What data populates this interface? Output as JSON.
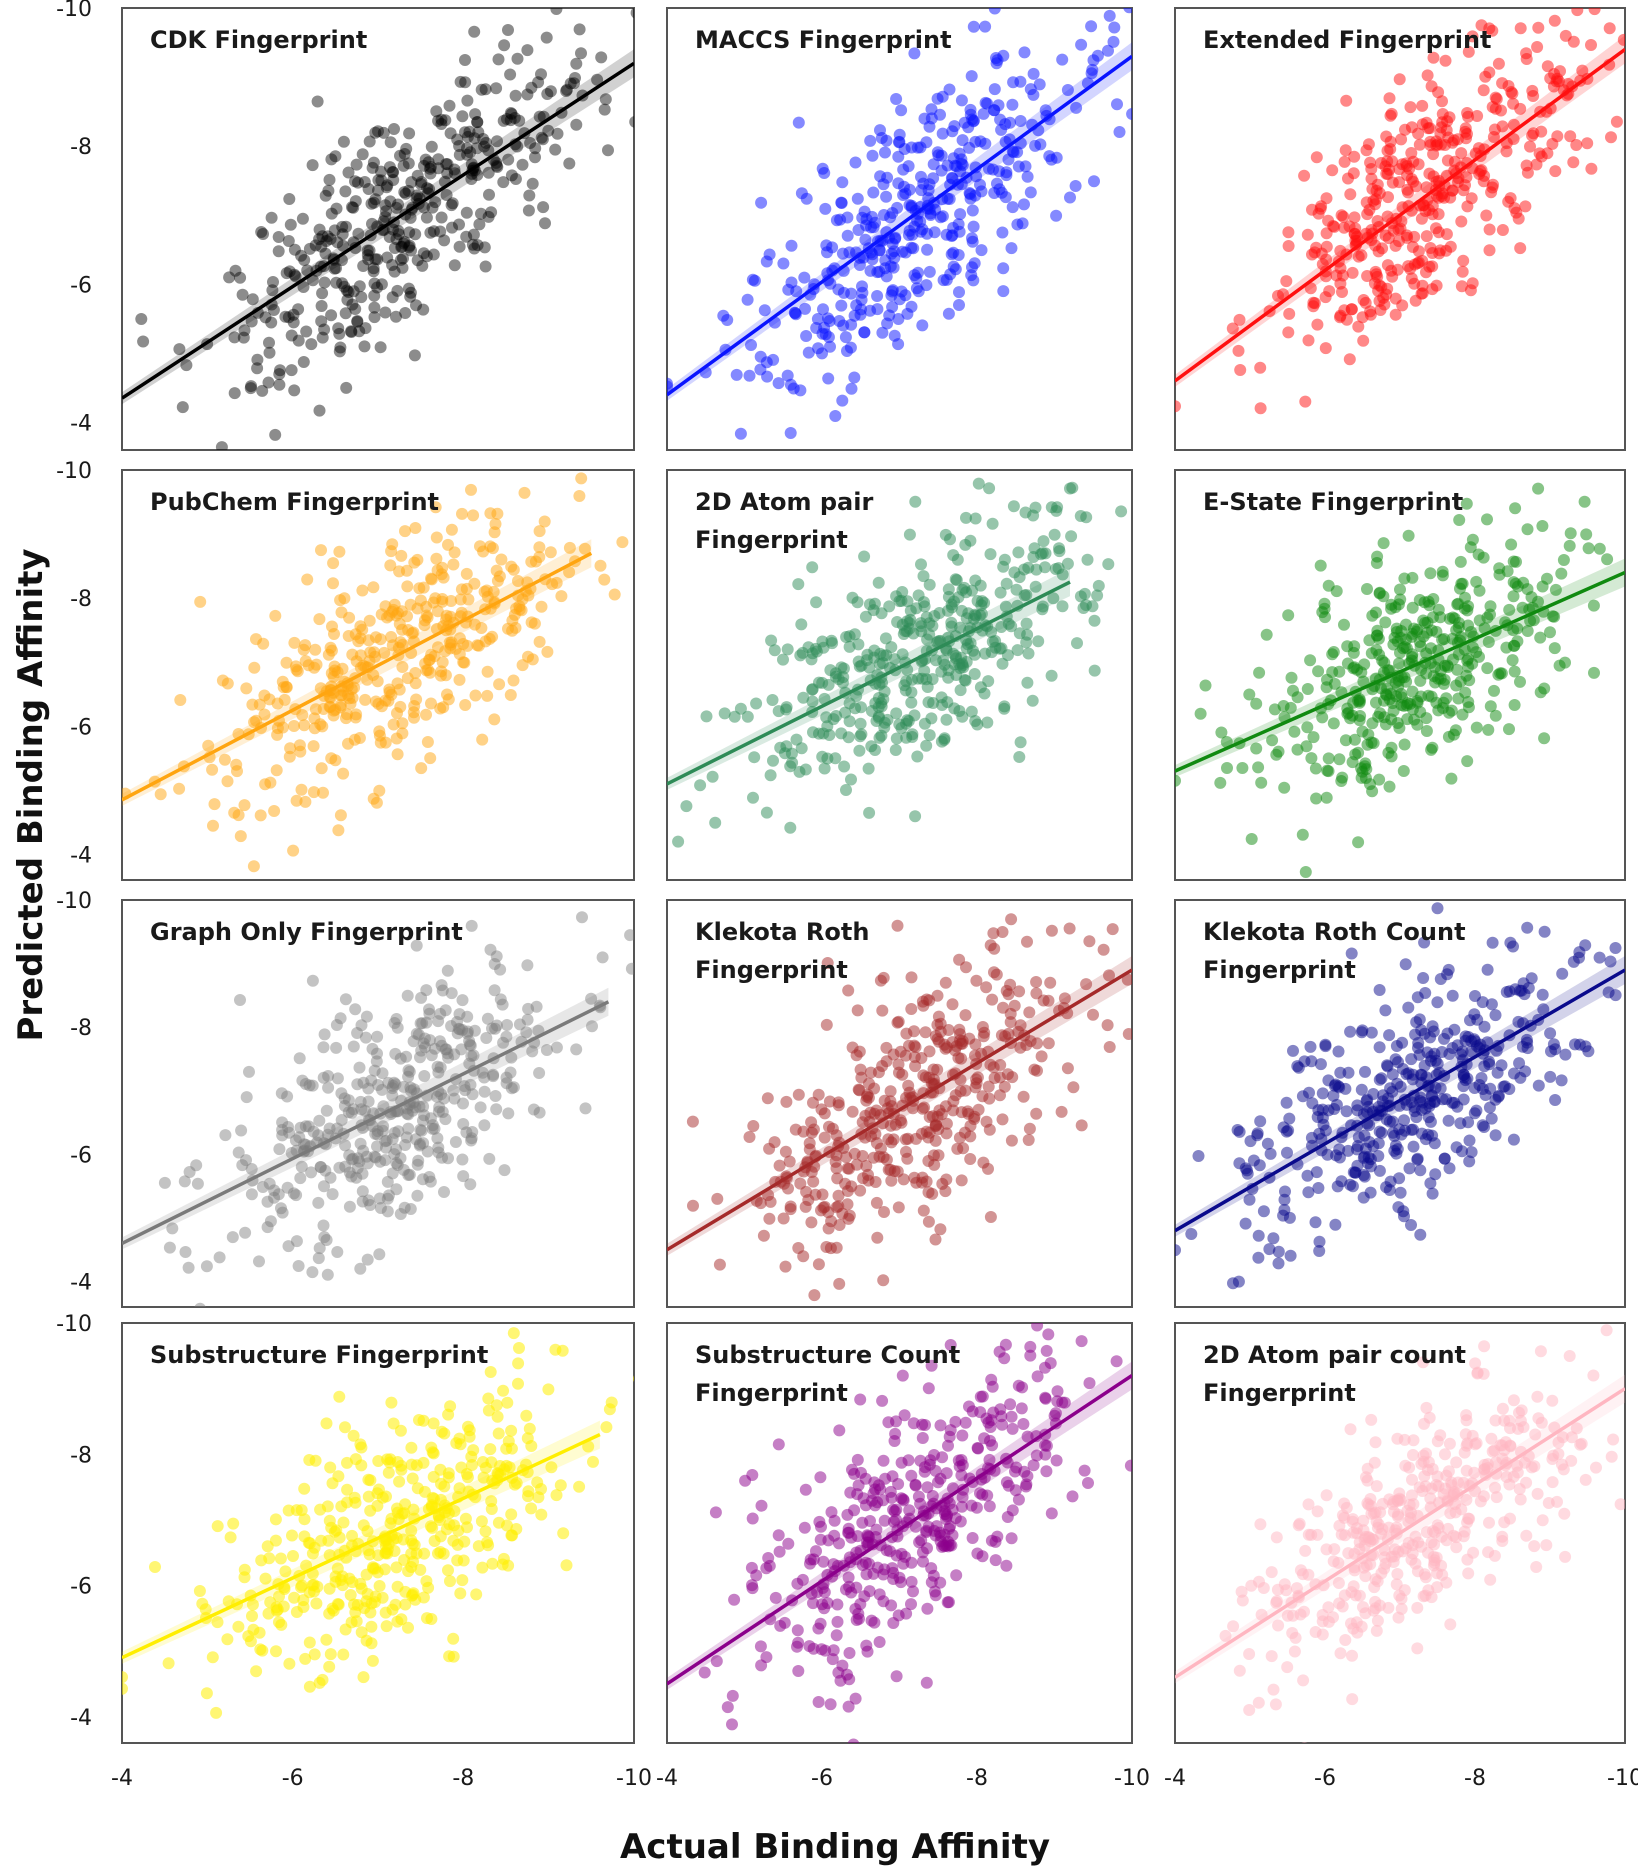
{
  "chart_data": {
    "type": "scatter",
    "layout": "4x3 grid of regression scatter panels",
    "xlabel": "Actual   Binding   Affinity",
    "ylabel": "Predicted   Binding   Affinity",
    "xlim": [
      -4,
      -10
    ],
    "ylim": [
      -3.6,
      -10
    ],
    "x_ticks": [
      "-4",
      "-6",
      "-8",
      "-10"
    ],
    "y_ticks": [
      "-4",
      "-6",
      "-8",
      "-10"
    ],
    "x_tick_values": [
      -4,
      -6,
      -8,
      -10
    ],
    "y_tick_values": [
      -4,
      -6,
      -8,
      -10
    ],
    "points_per_panel": 420,
    "panels": [
      {
        "title": [
          "CDK Fingerprint"
        ],
        "color": "#000000",
        "alpha": 0.45,
        "fit": {
          "x0": -4.0,
          "y0": -4.35,
          "x1": -10.0,
          "y1": -9.2
        },
        "x_mean": -7.3,
        "y_mean": -6.9,
        "x_sd": 1.1,
        "y_sd": 1.2
      },
      {
        "title": [
          "MACCS Fingerprint"
        ],
        "color": "#0a14ff",
        "alpha": 0.5,
        "fit": {
          "x0": -4.0,
          "y0": -4.4,
          "x1": -10.0,
          "y1": -9.3
        },
        "x_mean": -7.2,
        "y_mean": -6.9,
        "x_sd": 1.1,
        "y_sd": 1.2
      },
      {
        "title": [
          "Extended Fingerprint"
        ],
        "color": "#ff1010",
        "alpha": 0.5,
        "fit": {
          "x0": -4.0,
          "y0": -4.6,
          "x1": -10.0,
          "y1": -9.4
        },
        "x_mean": -7.3,
        "y_mean": -7.0,
        "x_sd": 1.1,
        "y_sd": 1.2
      },
      {
        "title": [
          "PubChem Fingerprint"
        ],
        "color": "#ffa510",
        "alpha": 0.5,
        "fit": {
          "x0": -4.0,
          "y0": -4.85,
          "x1": -9.5,
          "y1": -8.7
        },
        "x_mean": -7.2,
        "y_mean": -6.9,
        "x_sd": 1.1,
        "y_sd": 1.2
      },
      {
        "title": [
          "2D Atom pair",
          "Fingerprint"
        ],
        "color": "#2e8b57",
        "alpha": 0.5,
        "fit": {
          "x0": -4.0,
          "y0": -5.1,
          "x1": -9.2,
          "y1": -8.25
        },
        "x_mean": -7.3,
        "y_mean": -6.9,
        "x_sd": 1.1,
        "y_sd": 1.2
      },
      {
        "title": [
          "E-State Fingerprint"
        ],
        "color": "#108a10",
        "alpha": 0.5,
        "fit": {
          "x0": -4.0,
          "y0": -5.3,
          "x1": -10.0,
          "y1": -8.4
        },
        "x_mean": -7.2,
        "y_mean": -6.9,
        "x_sd": 1.1,
        "y_sd": 1.1
      },
      {
        "title": [
          "Graph Only Fingerprint"
        ],
        "color": "#7a7a7a",
        "alpha": 0.45,
        "fit": {
          "x0": -4.0,
          "y0": -4.6,
          "x1": -9.7,
          "y1": -8.4
        },
        "x_mean": -7.2,
        "y_mean": -6.8,
        "x_sd": 1.1,
        "y_sd": 1.2
      },
      {
        "title": [
          "Klekota Roth",
          "Fingerprint"
        ],
        "color": "#a52a2a",
        "alpha": 0.5,
        "fit": {
          "x0": -4.0,
          "y0": -4.5,
          "x1": -10.0,
          "y1": -8.9
        },
        "x_mean": -7.2,
        "y_mean": -6.8,
        "x_sd": 1.1,
        "y_sd": 1.2
      },
      {
        "title": [
          "Klekota Roth Count",
          "Fingerprint"
        ],
        "color": "#0a0a8c",
        "alpha": 0.5,
        "fit": {
          "x0": -4.0,
          "y0": -4.8,
          "x1": -10.0,
          "y1": -8.9
        },
        "x_mean": -7.1,
        "y_mean": -6.8,
        "x_sd": 1.1,
        "y_sd": 1.2
      },
      {
        "title": [
          "Substructure Fingerprint"
        ],
        "color": "#ffee00",
        "alpha": 0.55,
        "fit": {
          "x0": -4.0,
          "y0": -4.9,
          "x1": -9.6,
          "y1": -8.3
        },
        "x_mean": -7.2,
        "y_mean": -6.9,
        "x_sd": 1.1,
        "y_sd": 1.2
      },
      {
        "title": [
          "Substructure Count",
          "Fingerprint"
        ],
        "color": "#8b008b",
        "alpha": 0.5,
        "fit": {
          "x0": -4.0,
          "y0": -4.5,
          "x1": -10.0,
          "y1": -9.2
        },
        "x_mean": -7.2,
        "y_mean": -6.9,
        "x_sd": 1.1,
        "y_sd": 1.2
      },
      {
        "title": [
          "2D Atom pair count",
          "Fingerprint"
        ],
        "color": "#ffb6c1",
        "alpha": 0.5,
        "fit": {
          "x0": -4.0,
          "y0": -4.6,
          "x1": -10.0,
          "y1": -9.0
        },
        "x_mean": -7.2,
        "y_mean": -6.9,
        "x_sd": 1.1,
        "y_sd": 1.2
      }
    ]
  }
}
